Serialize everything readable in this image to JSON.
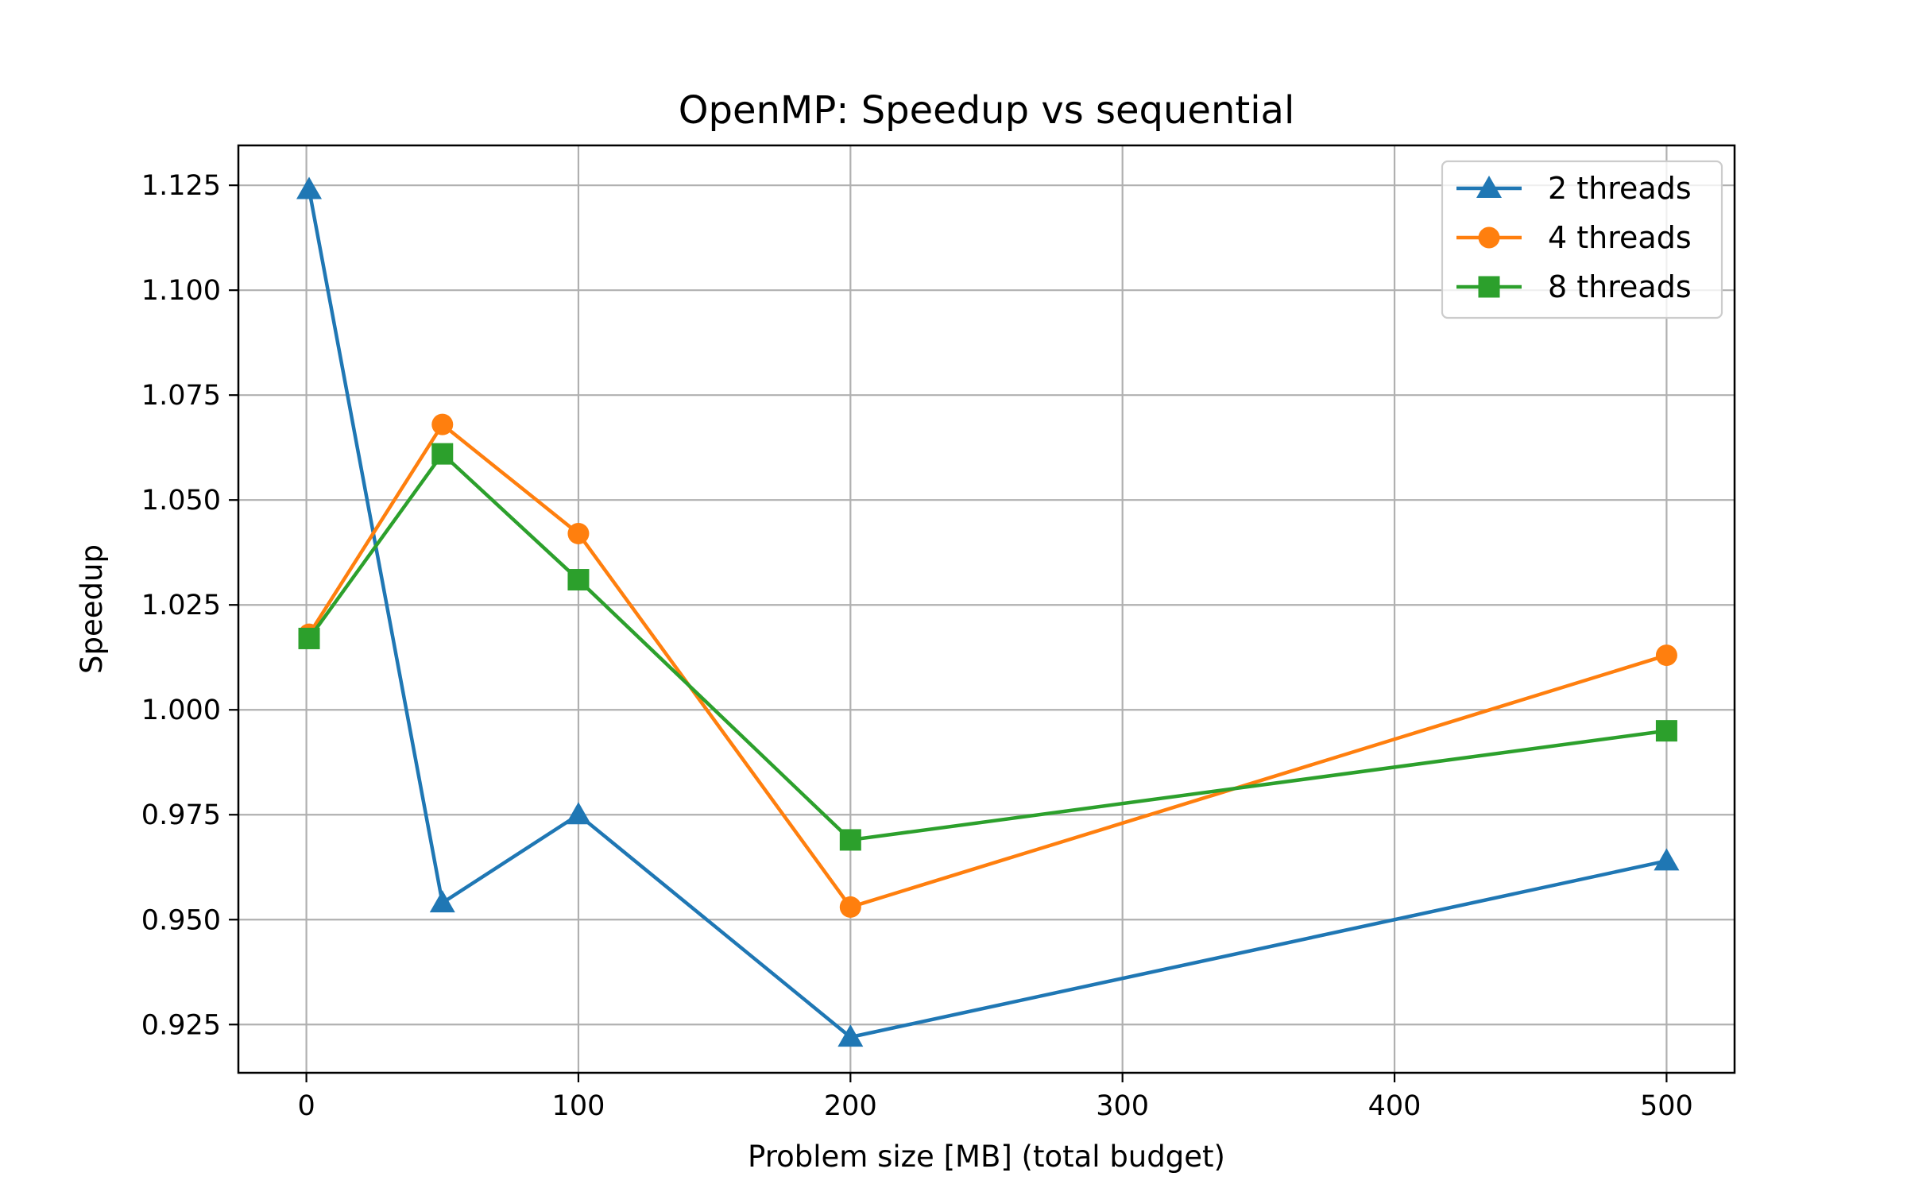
{
  "chart_data": {
    "type": "line",
    "title": "OpenMP: Speedup vs sequential",
    "xlabel": "Problem size [MB] (total budget)",
    "ylabel": "Speedup",
    "xlim": [
      -25,
      525
    ],
    "ylim": [
      0.9135,
      1.1345
    ],
    "xticks": [
      0,
      100,
      200,
      300,
      400,
      500
    ],
    "yticks": [
      0.925,
      0.95,
      0.975,
      1.0,
      1.025,
      1.05,
      1.075,
      1.1,
      1.125
    ],
    "xtick_labels": [
      "0",
      "100",
      "200",
      "300",
      "400",
      "500"
    ],
    "ytick_labels": [
      "0.925",
      "0.950",
      "0.975",
      "1.000",
      "1.025",
      "1.050",
      "1.075",
      "1.100",
      "1.125"
    ],
    "grid": true,
    "legend": "top-right",
    "x": [
      1,
      50,
      100,
      200,
      500
    ],
    "series": [
      {
        "name": "2 threads",
        "marker": "triangle",
        "color": "#1f77b4",
        "values": [
          1.124,
          0.954,
          0.975,
          0.922,
          0.964
        ]
      },
      {
        "name": "4 threads",
        "marker": "circle",
        "color": "#ff7f0e",
        "values": [
          1.018,
          1.068,
          1.042,
          0.953,
          1.013
        ]
      },
      {
        "name": "8 threads",
        "marker": "square",
        "color": "#2ca02c",
        "values": [
          1.017,
          1.061,
          1.031,
          0.969,
          0.995
        ]
      }
    ]
  }
}
